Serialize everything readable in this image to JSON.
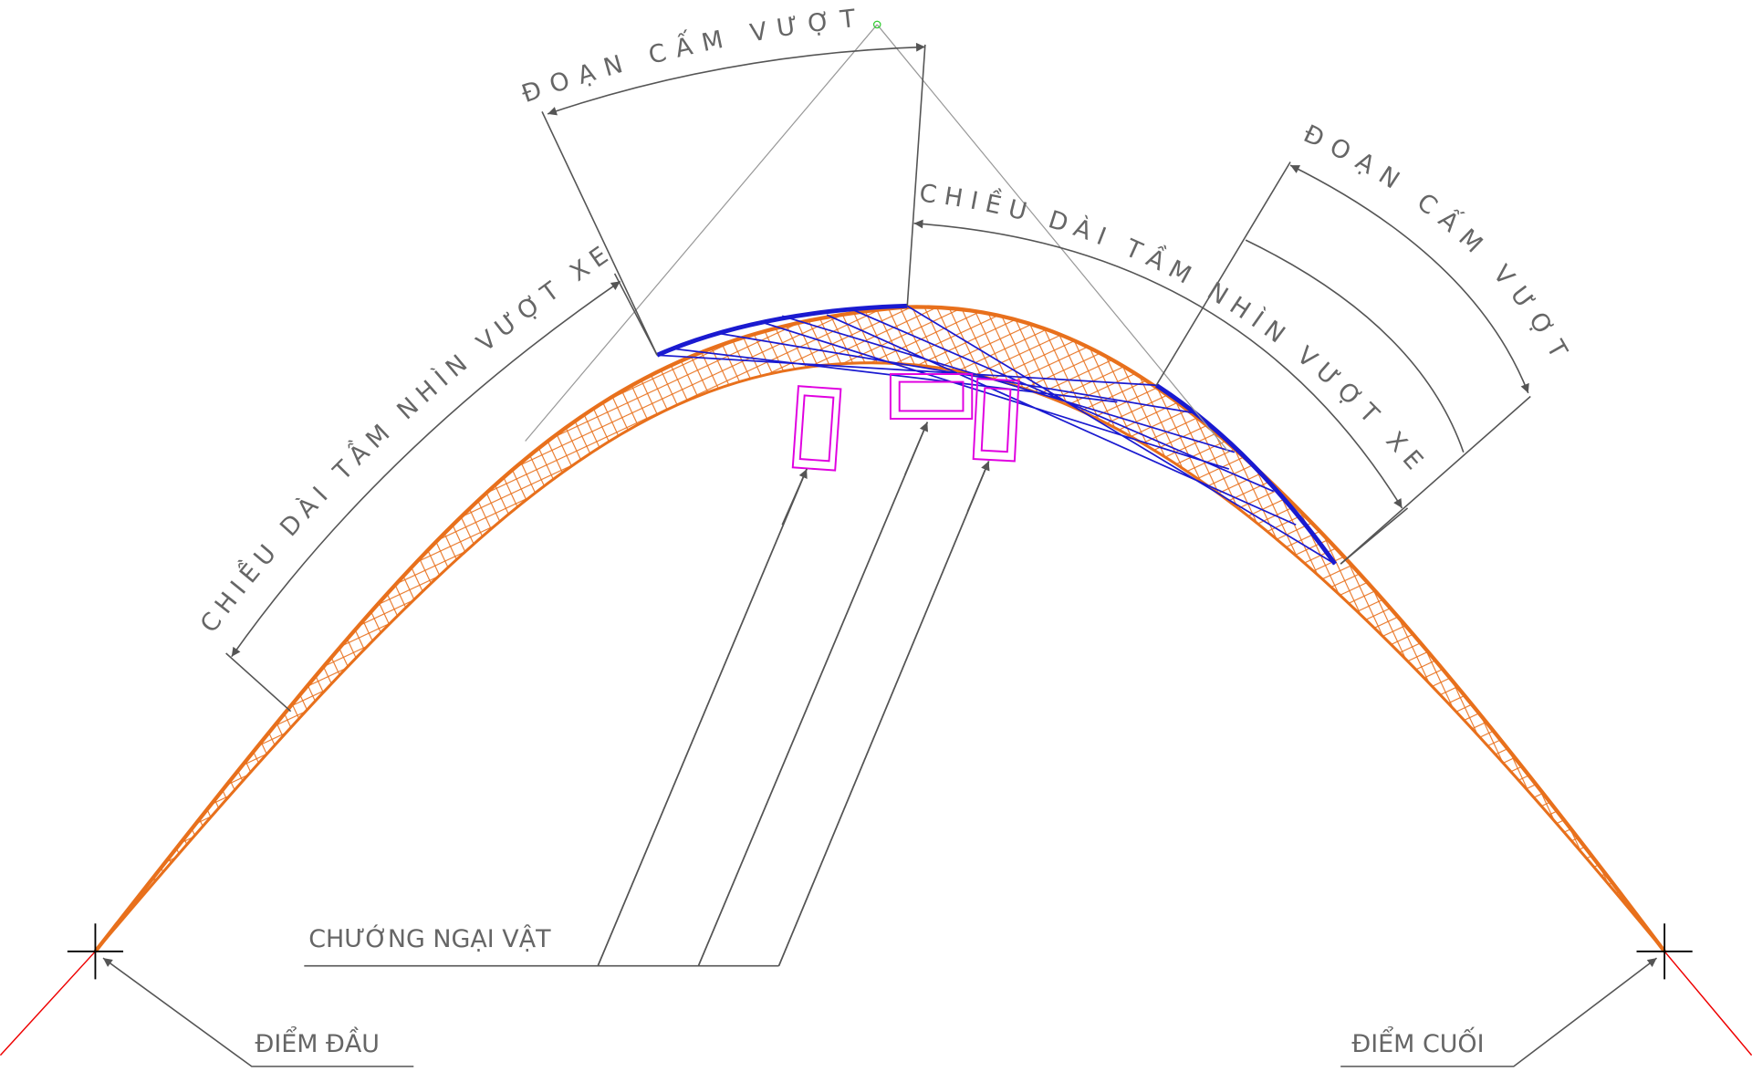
{
  "labels": {
    "top_no_passing": "ĐOẠN CẤM VƯỢT",
    "left_sight_distance": "CHIỀU DÀI TẦM NHÌN VƯỢT XE",
    "right_sight_distance": "CHIỀU DÀI TẦM NHÌN VƯỢT XE",
    "right_no_passing": "ĐOẠN CẤM VƯỢT",
    "obstacle": "CHƯỚNG NGẠI VẬT",
    "start_point": "ĐIỂM ĐẦU",
    "end_point": "ĐIỂM CUỐI"
  }
}
